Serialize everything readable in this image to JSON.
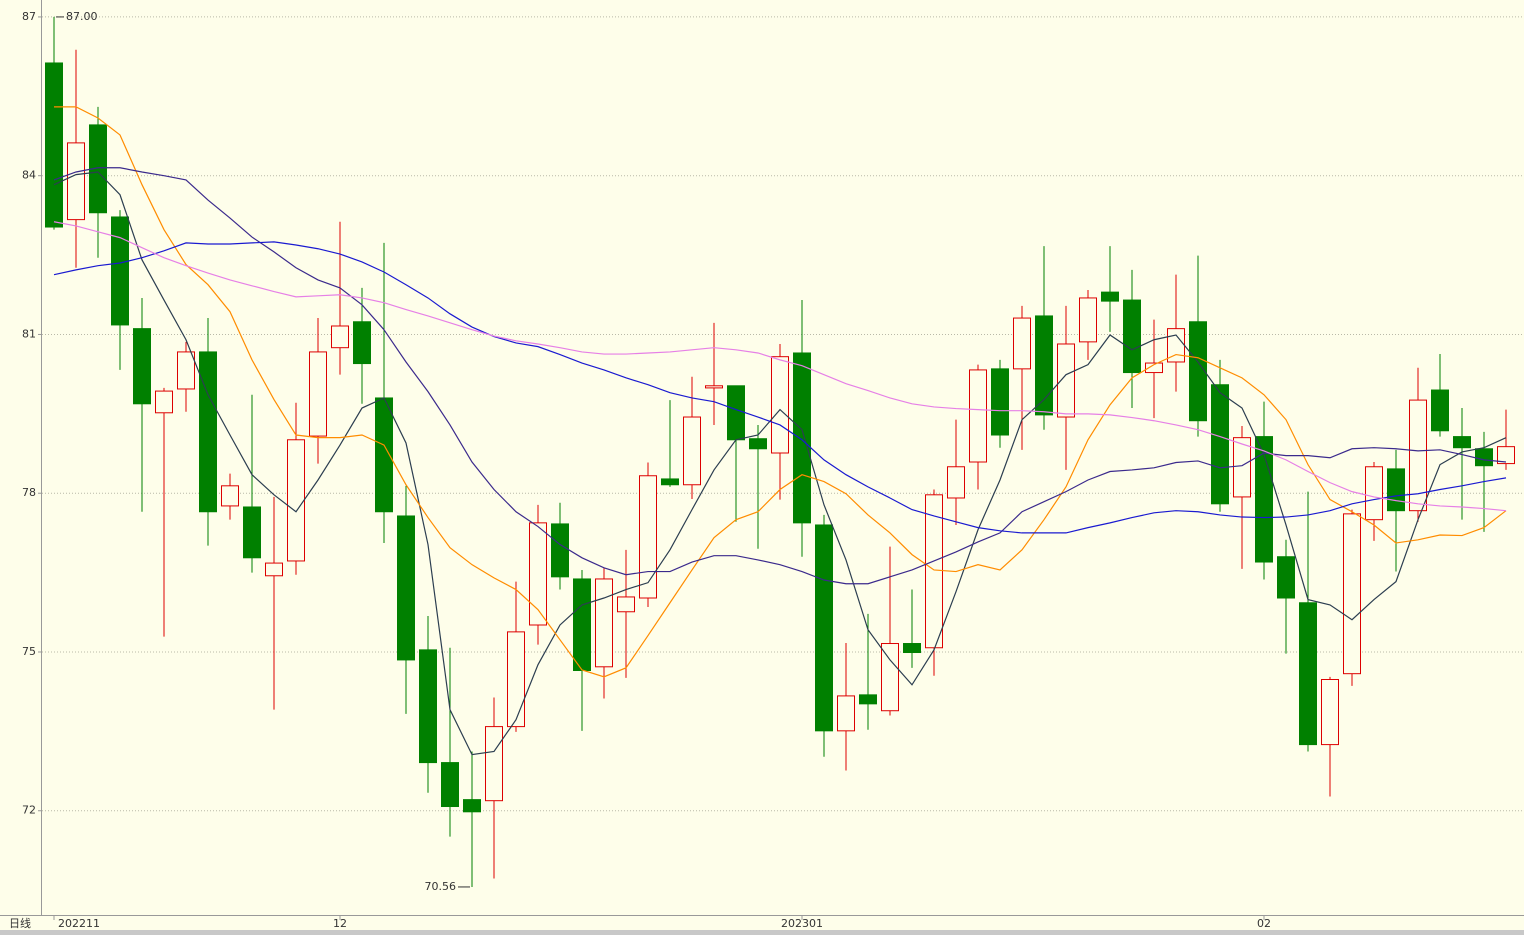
{
  "chart_data": {
    "type": "candlestick",
    "categories": [
      "202211",
      null,
      null,
      null,
      null,
      null,
      null,
      null,
      null,
      null,
      null,
      null,
      null,
      "12",
      null,
      null,
      null,
      null,
      null,
      null,
      null,
      null,
      null,
      null,
      null,
      null,
      null,
      null,
      null,
      null,
      null,
      null,
      null,
      null,
      "202301",
      null,
      null,
      null,
      null,
      null,
      null,
      null,
      null,
      null,
      null,
      null,
      null,
      null,
      null,
      null,
      null,
      null,
      null,
      null,
      null,
      "02",
      null,
      null,
      null,
      null,
      null,
      null,
      null,
      null,
      null,
      null,
      null
    ],
    "open": [
      86.13,
      83.17,
      84.96,
      83.22,
      81.11,
      79.52,
      79.97,
      80.67,
      77.76,
      77.74,
      76.44,
      76.72,
      79.08,
      80.75,
      81.24,
      79.8,
      77.57,
      75.04,
      72.91,
      72.21,
      72.19,
      73.59,
      75.51,
      77.42,
      76.38,
      74.72,
      75.76,
      76.02,
      78.27,
      78.16,
      79.99,
      80.03,
      79.03,
      78.76,
      80.65,
      77.4,
      73.51,
      74.19,
      73.89,
      75.16,
      75.08,
      77.91,
      78.59,
      80.35,
      80.35,
      81.35,
      79.44,
      80.86,
      81.8,
      81.65,
      80.28,
      80.48,
      81.24,
      80.05,
      77.93,
      79.07,
      76.8,
      75.93,
      73.25,
      74.59,
      77.5,
      78.46,
      77.67,
      79.95,
      79.07,
      78.84,
      78.56
    ],
    "high": [
      87.0,
      86.38,
      85.3,
      83.35,
      81.69,
      79.99,
      80.86,
      81.31,
      78.37,
      79.86,
      77.93,
      79.71,
      81.31,
      83.13,
      81.88,
      82.73,
      78.14,
      75.68,
      75.08,
      73.12,
      74.14,
      76.33,
      77.78,
      77.82,
      76.55,
      76.59,
      76.93,
      78.58,
      79.76,
      80.2,
      81.22,
      80.03,
      79.29,
      80.82,
      81.65,
      77.59,
      75.17,
      75.72,
      76.99,
      76.18,
      78.07,
      79.39,
      80.43,
      80.52,
      81.54,
      82.67,
      81.54,
      81.84,
      82.67,
      82.22,
      81.28,
      82.13,
      82.49,
      80.52,
      79.27,
      79.73,
      77.12,
      78.03,
      74.53,
      77.69,
      78.59,
      78.82,
      80.37,
      80.63,
      79.61,
      79.16,
      79.58
    ],
    "low": [
      82.98,
      82.26,
      82.45,
      80.33,
      77.65,
      75.29,
      79.54,
      77.01,
      77.5,
      76.5,
      73.91,
      76.46,
      78.56,
      80.24,
      79.69,
      77.06,
      73.83,
      72.34,
      71.51,
      70.56,
      70.72,
      73.49,
      75.14,
      76.18,
      73.51,
      74.12,
      74.51,
      75.85,
      78.12,
      77.89,
      79.29,
      77.46,
      76.95,
      77.88,
      76.8,
      73.02,
      72.76,
      73.53,
      73.8,
      74.7,
      74.55,
      77.4,
      78.07,
      78.86,
      78.82,
      79.2,
      78.44,
      80.52,
      81.05,
      79.61,
      79.42,
      79.92,
      79.07,
      77.65,
      76.57,
      76.37,
      74.97,
      73.12,
      72.27,
      74.36,
      77.1,
      76.52,
      77.46,
      79.07,
      77.5,
      77.27,
      78.44
    ],
    "close": [
      83.03,
      84.62,
      83.3,
      81.18,
      79.69,
      79.93,
      80.67,
      77.65,
      78.14,
      76.78,
      76.68,
      79.01,
      80.67,
      81.16,
      80.45,
      77.65,
      74.85,
      72.91,
      72.08,
      71.98,
      73.59,
      75.38,
      77.44,
      76.42,
      74.65,
      76.38,
      76.04,
      78.33,
      78.16,
      79.44,
      80.03,
      79.01,
      78.84,
      80.58,
      77.44,
      73.51,
      74.17,
      74.02,
      75.16,
      74.99,
      77.97,
      78.5,
      80.33,
      79.1,
      81.31,
      79.48,
      80.82,
      81.69,
      81.63,
      80.28,
      80.46,
      81.11,
      79.37,
      77.8,
      79.05,
      76.7,
      76.02,
      73.25,
      74.48,
      77.61,
      78.5,
      77.67,
      79.76,
      79.18,
      78.86,
      78.52,
      78.88
    ],
    "up_color": "#dd0000",
    "down_color": "#008000",
    "series": [
      {
        "color": "#2c3e50",
        "values": [
          83.83,
          84.02,
          84.07,
          83.64,
          82.41,
          81.65,
          80.9,
          79.86,
          79.1,
          78.35,
          77.97,
          77.65,
          78.25,
          78.91,
          79.61,
          79.8,
          78.95,
          77.03,
          73.91,
          73.06,
          73.12,
          73.72,
          74.76,
          75.51,
          75.89,
          76.02,
          76.18,
          76.31,
          76.93,
          77.69,
          78.44,
          79.01,
          79.1,
          79.58,
          79.2,
          77.78,
          76.74,
          75.42,
          74.85,
          74.38,
          75.04,
          76.14,
          77.31,
          78.25,
          79.39,
          79.77,
          80.24,
          80.43,
          80.99,
          80.71,
          80.9,
          80.99,
          80.48,
          79.9,
          79.61,
          78.73,
          77.4,
          75.99,
          75.89,
          75.61,
          75.99,
          76.33,
          77.5,
          78.54,
          78.78,
          78.86,
          79.05
        ]
      },
      {
        "color": "#ff8c00",
        "values": [
          85.3,
          85.3,
          85.09,
          84.77,
          83.83,
          82.98,
          82.32,
          81.94,
          81.43,
          80.52,
          79.77,
          79.1,
          79.05,
          79.05,
          79.1,
          78.91,
          78.16,
          77.54,
          76.97,
          76.65,
          76.4,
          76.18,
          75.8,
          75.23,
          74.66,
          74.53,
          74.7,
          75.31,
          75.93,
          76.55,
          77.16,
          77.5,
          77.65,
          78.07,
          78.35,
          78.22,
          77.99,
          77.59,
          77.25,
          76.84,
          76.55,
          76.52,
          76.65,
          76.55,
          76.93,
          77.5,
          78.12,
          79.01,
          79.67,
          80.18,
          80.43,
          80.62,
          80.56,
          80.37,
          80.18,
          79.86,
          79.39,
          78.54,
          77.88,
          77.65,
          77.4,
          77.06,
          77.12,
          77.21,
          77.2,
          77.35,
          77.67
        ]
      },
      {
        "color": "#3b2a8c",
        "values": [
          83.92,
          84.07,
          84.15,
          84.15,
          84.07,
          84.0,
          83.92,
          83.54,
          83.2,
          82.84,
          82.56,
          82.26,
          82.03,
          81.88,
          81.56,
          81.09,
          80.48,
          79.92,
          79.29,
          78.59,
          78.07,
          77.65,
          77.37,
          77.03,
          76.78,
          76.59,
          76.46,
          76.52,
          76.52,
          76.7,
          76.82,
          76.82,
          76.74,
          76.65,
          76.52,
          76.36,
          76.29,
          76.29,
          76.42,
          76.55,
          76.72,
          76.89,
          77.08,
          77.25,
          77.65,
          77.84,
          78.03,
          78.25,
          78.41,
          78.44,
          78.48,
          78.58,
          78.61,
          78.48,
          78.52,
          78.76,
          78.71,
          78.71,
          78.67,
          78.84,
          78.86,
          78.84,
          78.8,
          78.82,
          78.73,
          78.63,
          78.59
        ]
      },
      {
        "color": "#1a1ad0",
        "values": [
          82.13,
          82.22,
          82.3,
          82.35,
          82.45,
          82.58,
          82.73,
          82.71,
          82.71,
          82.73,
          82.75,
          82.69,
          82.62,
          82.52,
          82.37,
          82.18,
          81.94,
          81.69,
          81.39,
          81.14,
          80.96,
          80.84,
          80.77,
          80.62,
          80.46,
          80.33,
          80.18,
          80.05,
          79.9,
          79.8,
          79.73,
          79.58,
          79.44,
          79.29,
          79.01,
          78.63,
          78.35,
          78.12,
          77.91,
          77.69,
          77.57,
          77.46,
          77.35,
          77.29,
          77.25,
          77.25,
          77.25,
          77.35,
          77.44,
          77.54,
          77.63,
          77.67,
          77.65,
          77.59,
          77.55,
          77.54,
          77.55,
          77.59,
          77.67,
          77.8,
          77.88,
          77.95,
          77.99,
          78.07,
          78.14,
          78.22,
          78.29
        ]
      },
      {
        "color": "#e680e6",
        "values": [
          83.13,
          83.05,
          82.94,
          82.83,
          82.64,
          82.45,
          82.3,
          82.16,
          82.03,
          81.92,
          81.81,
          81.71,
          81.73,
          81.75,
          81.69,
          81.6,
          81.47,
          81.35,
          81.22,
          81.09,
          80.97,
          80.88,
          80.82,
          80.75,
          80.67,
          80.63,
          80.63,
          80.65,
          80.67,
          80.71,
          80.75,
          80.71,
          80.65,
          80.52,
          80.41,
          80.24,
          80.07,
          79.94,
          79.8,
          79.69,
          79.63,
          79.6,
          79.58,
          79.56,
          79.56,
          79.54,
          79.5,
          79.5,
          79.48,
          79.43,
          79.37,
          79.29,
          79.2,
          79.07,
          78.93,
          78.8,
          78.63,
          78.41,
          78.2,
          78.03,
          77.93,
          77.86,
          77.8,
          77.76,
          77.74,
          77.71,
          77.67
        ]
      }
    ],
    "ylim": [
      70.03,
      87.32
    ],
    "yticks": [
      72,
      75,
      78,
      81,
      84,
      87
    ],
    "grid": true,
    "period_label": "日线",
    "high_mark": {
      "value": 87,
      "label": "87.00"
    },
    "low_mark": 70.56
  }
}
